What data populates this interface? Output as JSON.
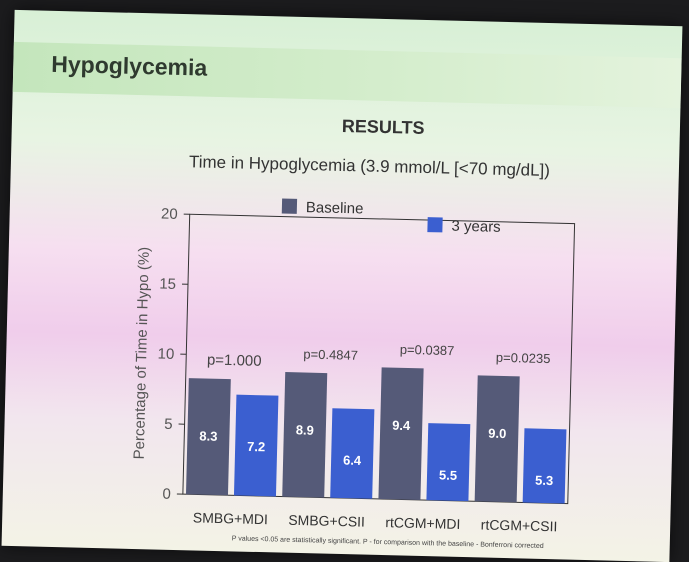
{
  "slide": {
    "section_title": "Hypoglycemia",
    "heading": "RESULTS",
    "footnote": "P values <0.05 are statistically significant. P - for comparison with the baseline - Bonferroni corrected"
  },
  "colors": {
    "baseline": "#555a78",
    "three_years": "#3b5fd0"
  },
  "chart_data": {
    "type": "bar",
    "title": "Time in Hypoglycemia (3.9 mmol/L [<70 mg/dL])",
    "ylabel": "Percentage of Time in Hypo (%)",
    "xlabel": "",
    "ylim": [
      0,
      20
    ],
    "yticks": [
      0,
      5,
      10,
      15,
      20
    ],
    "grid": false,
    "legend_position": "top",
    "categories": [
      "SMBG+MDI",
      "SMBG+CSII",
      "rtCGM+MDI",
      "rtCGM+CSII"
    ],
    "series": [
      {
        "name": "Baseline",
        "values": [
          8.3,
          8.9,
          9.4,
          9.0
        ]
      },
      {
        "name": "3 years",
        "values": [
          7.2,
          6.4,
          5.5,
          5.3
        ]
      }
    ],
    "p_values": [
      "p=1.000",
      "p=0.4847",
      "p=0.0387",
      "p=0.0235"
    ]
  }
}
